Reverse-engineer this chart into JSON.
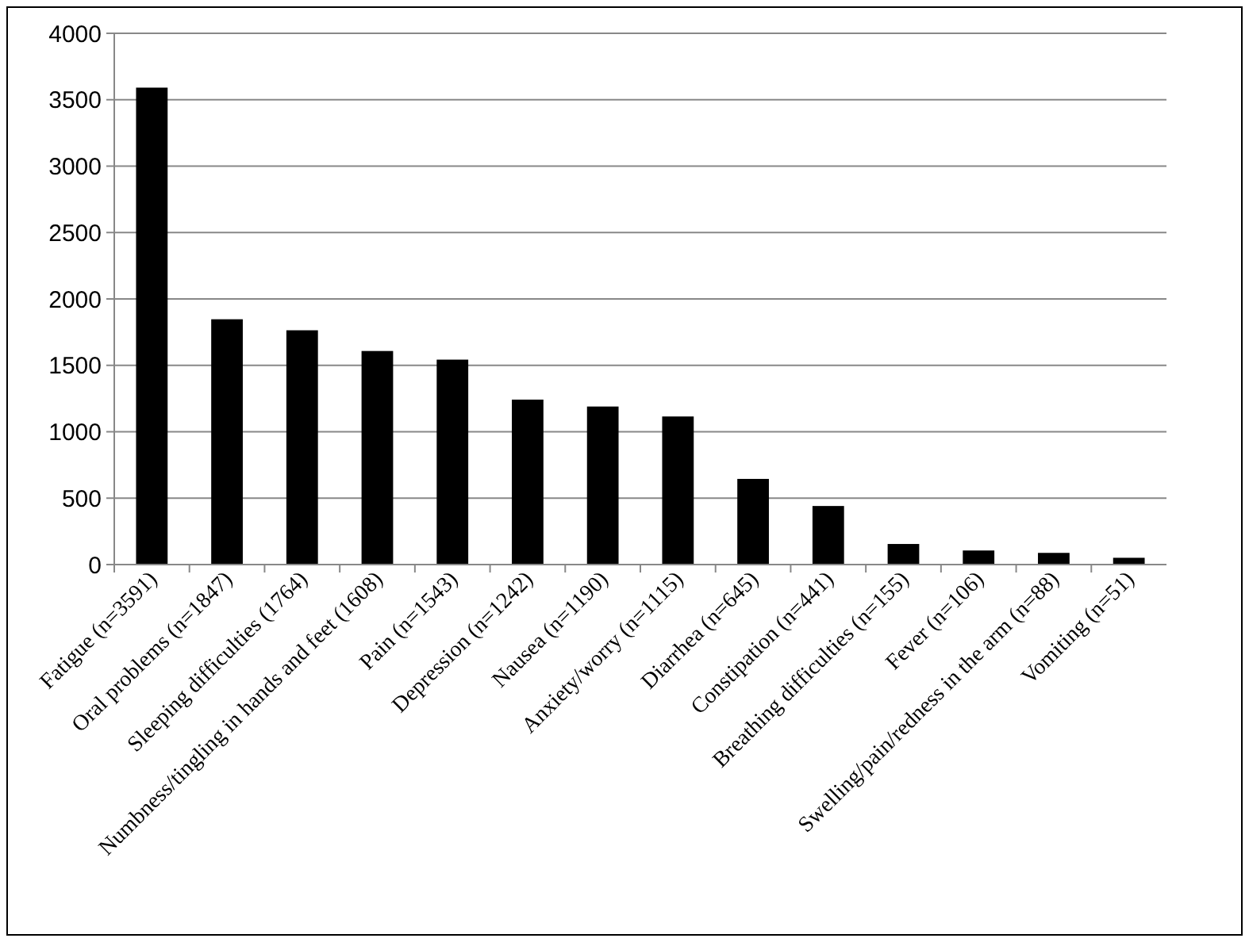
{
  "chart_data": {
    "type": "bar",
    "categories": [
      "Fatigue (n=3591)",
      "Oral problems (n=1847)",
      "Sleeping difficulties (1764)",
      "Numbness/tingling in hands and feet (1608)",
      "Pain (n=1543)",
      "Depression (n=1242)",
      "Nausea (n=1190)",
      "Anxiety/worry (n=1115)",
      "Diarrhea (n=645)",
      "Constipation (n=441)",
      "Breathing difficulties (n=155)",
      "Fever (n=106)",
      "Swelling/pain/redness in the arm (n=88)",
      "Vomiting (n=51)"
    ],
    "values": [
      3591,
      1847,
      1764,
      1608,
      1543,
      1242,
      1190,
      1115,
      645,
      441,
      155,
      106,
      88,
      51
    ],
    "color": "#000000",
    "ylim": [
      0,
      4000
    ],
    "yticks": [
      0,
      500,
      1000,
      1500,
      2000,
      2500,
      3000,
      3500,
      4000
    ],
    "grid": "y"
  }
}
